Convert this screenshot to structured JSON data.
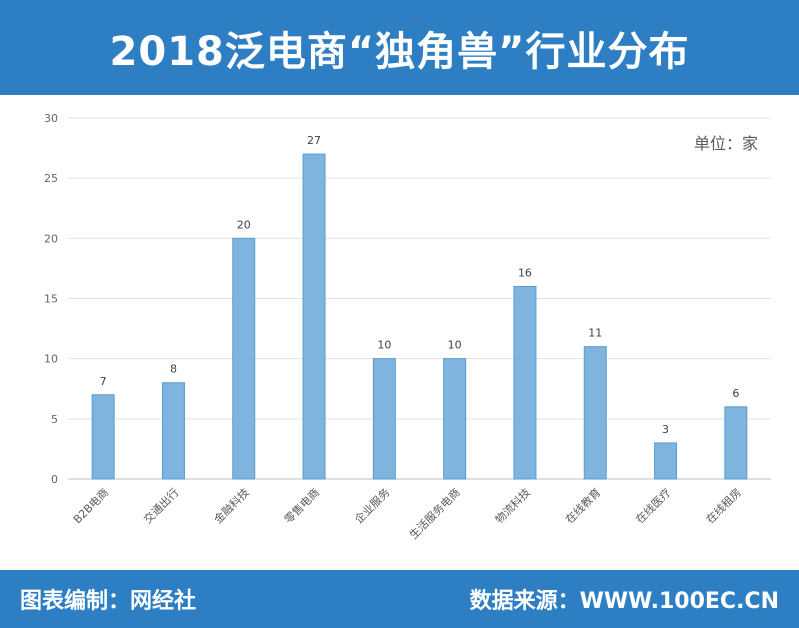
{
  "header": {
    "title": "2018泛电商“独角兽”行业分布"
  },
  "footer": {
    "left": "图表编制：网经社",
    "right": "数据来源：WWW.100EC.CN"
  },
  "chart_data": {
    "type": "bar",
    "unit_label": "单位：家",
    "categories": [
      "B2B电商",
      "交通出行",
      "金融科技",
      "零售电商",
      "企业服务",
      "生活服务电商",
      "物流科技",
      "在线教育",
      "在线医疗",
      "在线租房"
    ],
    "values": [
      7,
      8,
      20,
      27,
      10,
      10,
      16,
      11,
      3,
      6
    ],
    "ylim": [
      0,
      30
    ],
    "yticks": [
      0,
      5,
      10,
      15,
      20,
      25,
      30
    ],
    "grid": true,
    "bar_color": "#7fb4de",
    "bar_edge_color": "#5a9bd0"
  }
}
